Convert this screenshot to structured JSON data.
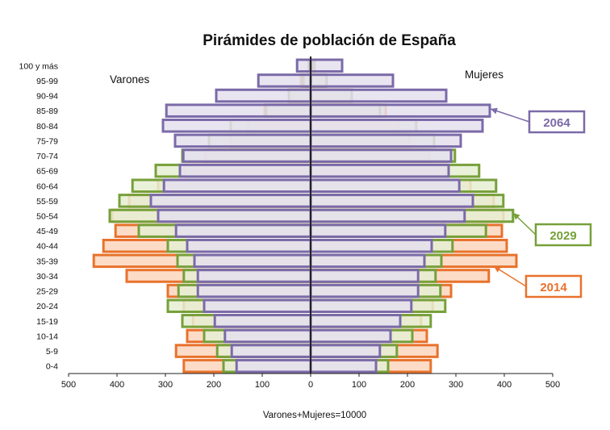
{
  "chart_data": {
    "type": "bar",
    "title": "Pirámides de población de España",
    "xlabel": "Varones+Mujeres=10000",
    "left_label": "Varones",
    "right_label": "Mujeres",
    "categories": [
      "0-4",
      "5-9",
      "10-14",
      "15-19",
      "20-24",
      "25-29",
      "30-34",
      "35-39",
      "40-44",
      "45-49",
      "50-54",
      "55-59",
      "60-64",
      "65-69",
      "70-74",
      "75-79",
      "80-84",
      "85-89",
      "90-94",
      "95-99",
      "100 y más"
    ],
    "xlim": [
      -500,
      500
    ],
    "xticks": [
      500,
      400,
      300,
      200,
      100,
      0,
      100,
      200,
      300,
      400,
      500
    ],
    "series": [
      {
        "name": "2014",
        "color": "#e8722c",
        "fill": "#fbd6bd",
        "varones": [
          262,
          278,
          255,
          243,
          262,
          295,
          380,
          448,
          428,
          403,
          410,
          375,
          315,
          260,
          218,
          165,
          130,
          95,
          45,
          20,
          4
        ],
        "mujeres": [
          248,
          262,
          240,
          228,
          252,
          290,
          368,
          425,
          405,
          395,
          398,
          378,
          330,
          280,
          245,
          205,
          182,
          155,
          85,
          30,
          8
        ]
      },
      {
        "name": "2029",
        "color": "#76a03a",
        "fill": "#e6efd2",
        "varones": [
          180,
          193,
          220,
          265,
          295,
          273,
          262,
          275,
          295,
          355,
          415,
          395,
          368,
          320,
          265,
          210,
          165,
          92,
          45,
          15,
          3
        ],
        "mujeres": [
          160,
          178,
          210,
          248,
          278,
          268,
          258,
          270,
          293,
          362,
          418,
          398,
          383,
          348,
          298,
          255,
          218,
          143,
          85,
          33,
          6
        ]
      },
      {
        "name": "2064",
        "color": "#7b6aa8",
        "fill": "#e4e0ef",
        "varones": [
          153,
          163,
          177,
          198,
          220,
          233,
          233,
          240,
          255,
          278,
          315,
          330,
          303,
          270,
          263,
          280,
          305,
          298,
          195,
          108,
          28
        ],
        "mujeres": [
          135,
          143,
          165,
          185,
          208,
          222,
          222,
          235,
          250,
          278,
          318,
          335,
          307,
          285,
          290,
          310,
          355,
          370,
          280,
          170,
          65
        ]
      }
    ],
    "legend": [
      "2064",
      "2029",
      "2014"
    ]
  }
}
